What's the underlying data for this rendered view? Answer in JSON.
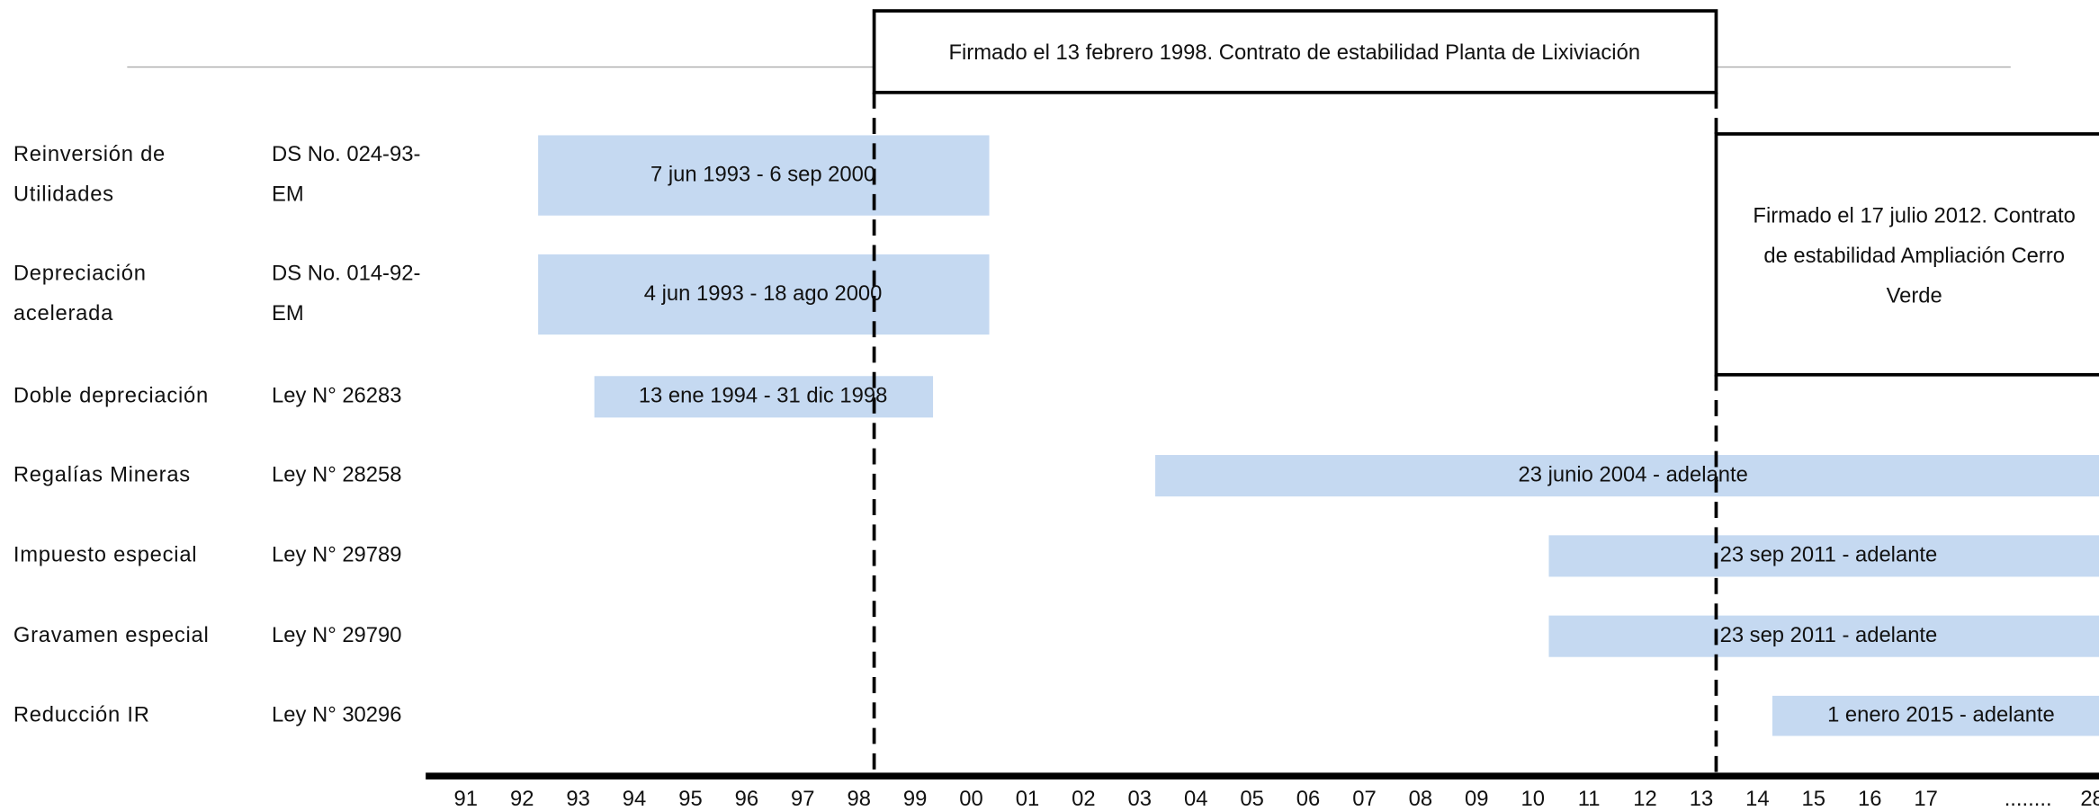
{
  "header": {
    "box1": "Firmado el 13 febrero 1998. Contrato de estabilidad Planta de Lixiviación",
    "box2": [
      "Firmado el 17 julio 2012. Contrato",
      "de estabilidad Ampliación Cerro",
      "Verde"
    ]
  },
  "rows": [
    {
      "label": [
        "Reinversión de",
        "Utilidades"
      ],
      "law": [
        "DS No. 024-93-",
        "EM"
      ],
      "period": "7 jun 1993 - 6 sep 2000"
    },
    {
      "label": [
        "Depreciación",
        "acelerada"
      ],
      "law": [
        "DS No. 014-92-",
        "EM"
      ],
      "period": "4 jun 1993 - 18 ago 2000"
    },
    {
      "label": [
        "Doble depreciación"
      ],
      "law": [
        "Ley N° 26283"
      ],
      "period": "13 ene 1994 - 31 dic 1998"
    },
    {
      "label": [
        "Regalías Mineras"
      ],
      "law": [
        "Ley N° 28258"
      ],
      "period": "23 junio 2004 - adelante"
    },
    {
      "label": [
        "Impuesto especial"
      ],
      "law": [
        "Ley N° 29789"
      ],
      "period": "23 sep 2011 - adelante"
    },
    {
      "label": [
        "Gravamen especial"
      ],
      "law": [
        "Ley N° 29790"
      ],
      "period": "23 sep 2011 - adelante"
    },
    {
      "label": [
        "Reducción IR"
      ],
      "law": [
        "Ley N° 30296"
      ],
      "period": "1 enero 2015 - adelante"
    }
  ],
  "axis": [
    "91",
    "92",
    "93",
    "94",
    "95",
    "96",
    "97",
    "98",
    "99",
    "00",
    "01",
    "02",
    "03",
    "04",
    "05",
    "06",
    "07",
    "08",
    "09",
    "10",
    "11",
    "12",
    "13",
    "14",
    "15",
    "16",
    "17",
    "........",
    "28"
  ]
}
